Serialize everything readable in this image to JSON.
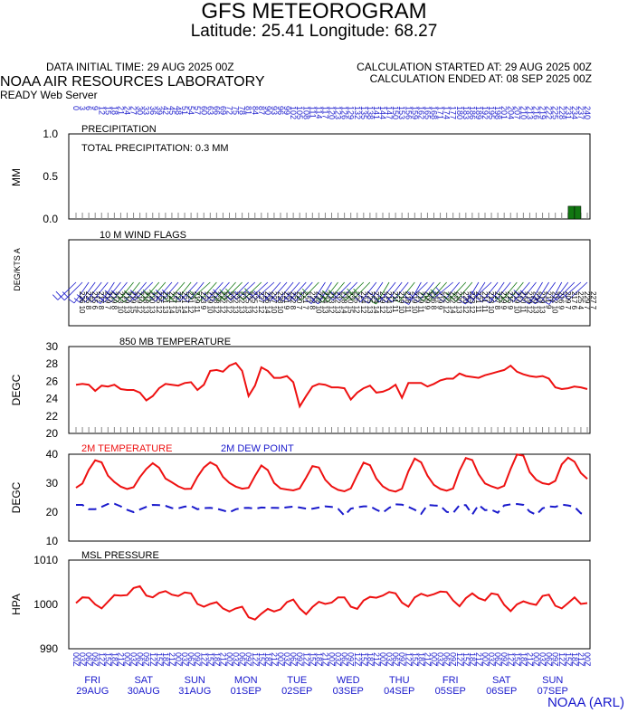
{
  "header": {
    "title": "GFS METEOROGRAM",
    "subtitle": "Latitude: 25.41 Longitude:  68.27",
    "init_time": "DATA INITIAL TIME: 29 AUG 2025 00Z",
    "calc_started": "CALCULATION STARTED AT: 29 AUG 2025 00Z",
    "calc_ended": "CALCULATION ENDED AT: 08 SEP 2025 00Z",
    "org": "NOAA AIR RESOURCES LABORATORY",
    "server": "READY Web Server"
  },
  "footer": {
    "credit": "NOAA (ARL)"
  },
  "colors": {
    "red": "#ee1111",
    "blue": "#1a1acc",
    "green": "#117711",
    "black": "#000000"
  },
  "chart_data": [
    {
      "type": "bar",
      "title": "PRECIPITATION",
      "annotation": "TOTAL PRECIPITATION:   0.3 MM",
      "ylabel": "MM",
      "ylim": [
        0,
        1
      ],
      "yticks": [
        "0.0",
        "0.5",
        "1.0"
      ],
      "x_hours": [
        0,
        3,
        6,
        9,
        12,
        15,
        18,
        21,
        24,
        27,
        30,
        33,
        36,
        39,
        42,
        45,
        48,
        51,
        54,
        57,
        60,
        63,
        66,
        69,
        72,
        75,
        78,
        81,
        84,
        87,
        90,
        93,
        96,
        99,
        102,
        105,
        108,
        111,
        114,
        117,
        120,
        123,
        126,
        129,
        132,
        135,
        138,
        141,
        144,
        147,
        150,
        153,
        156,
        159,
        162,
        165,
        168,
        171,
        174,
        177,
        180,
        183,
        186,
        189,
        192,
        195,
        198,
        201,
        204,
        207,
        210,
        213,
        216,
        219,
        222,
        225,
        228,
        231,
        234,
        237,
        240
      ],
      "values": [
        0,
        0,
        0,
        0,
        0,
        0,
        0,
        0,
        0,
        0,
        0,
        0,
        0,
        0,
        0,
        0,
        0,
        0,
        0,
        0,
        0,
        0,
        0,
        0,
        0,
        0,
        0,
        0,
        0,
        0,
        0,
        0,
        0,
        0,
        0,
        0,
        0,
        0,
        0,
        0,
        0,
        0,
        0,
        0,
        0,
        0,
        0,
        0,
        0,
        0,
        0,
        0,
        0,
        0,
        0,
        0,
        0,
        0,
        0,
        0,
        0,
        0,
        0,
        0,
        0,
        0,
        0,
        0,
        0,
        0,
        0,
        0,
        0,
        0,
        0,
        0,
        0,
        0,
        0.15,
        0.15,
        0
      ]
    },
    {
      "type": "line",
      "title": "10 M  WIND FLAGS",
      "ylabel": "DEG/KTS  A",
      "wind_dir_deg": [
        226,
        225,
        215,
        217,
        219,
        219,
        213,
        219,
        219,
        219,
        218,
        220,
        225,
        221,
        221,
        221,
        221,
        221,
        219,
        223,
        219,
        228,
        222,
        222,
        222,
        222,
        225,
        225,
        227,
        226,
        227,
        228,
        221,
        222,
        220,
        221,
        222,
        222,
        224,
        213,
        212,
        218,
        220,
        225,
        224,
        225,
        224,
        219,
        214,
        211,
        219,
        218,
        219,
        219,
        209,
        226,
        219,
        222,
        222,
        230,
        220,
        223,
        221,
        211,
        213,
        227,
        219,
        215,
        219,
        220,
        219,
        220,
        219,
        211,
        212,
        216,
        209,
        217,
        225,
        229,
        227
      ],
      "wind_kts": [
        10,
        8,
        6,
        8,
        7,
        8,
        10,
        13,
        15,
        12,
        13,
        13,
        12,
        13,
        14,
        15,
        14,
        12,
        11,
        9,
        10,
        12,
        12,
        12,
        13,
        13,
        13,
        12,
        12,
        14,
        10,
        10,
        9,
        8,
        7,
        7,
        8,
        10,
        13,
        12,
        13,
        14,
        15,
        12,
        12,
        13,
        14,
        12,
        13,
        11,
        10,
        11,
        10,
        11,
        9,
        8,
        9,
        12,
        14,
        13,
        12,
        12,
        11,
        11,
        10,
        8,
        9,
        9,
        10,
        11,
        12,
        13,
        13,
        9,
        10,
        9,
        7,
        6,
        4,
        7,
        7
      ]
    },
    {
      "type": "line",
      "title": "850 MB  TEMPERATURE",
      "ylabel": "DEGC",
      "ylim": [
        20,
        30
      ],
      "yticks": [
        "20",
        "22",
        "24",
        "26",
        "28",
        "30"
      ],
      "series": [
        {
          "values": [
            25.6,
            25.7,
            25.6,
            24.9,
            25.5,
            25.4,
            25.6,
            25.1,
            25.0,
            25.0,
            24.7,
            23.8,
            24.3,
            25.2,
            25.7,
            25.6,
            25.5,
            25.8,
            25.9,
            25.0,
            25.6,
            27.2,
            27.3,
            27.1,
            27.8,
            28.1,
            27.2,
            24.3,
            25.5,
            27.6,
            27.2,
            26.4,
            26.4,
            26.6,
            25.9,
            23.1,
            24.3,
            25.4,
            25.7,
            25.6,
            25.3,
            25.3,
            25.2,
            23.9,
            24.7,
            25.2,
            25.5,
            24.7,
            24.8,
            25.1,
            25.6,
            24.1,
            25.8,
            25.8,
            25.8,
            25.4,
            25.7,
            26.1,
            26.3,
            26.3,
            26.9,
            26.6,
            26.5,
            26.4,
            26.7,
            26.9,
            27.1,
            27.3,
            27.8,
            27.1,
            26.8,
            26.6,
            26.5,
            26.6,
            26.3,
            25.3,
            25.1,
            25.2,
            25.4,
            25.3,
            25.1
          ]
        }
      ]
    },
    {
      "type": "line",
      "legend": [
        "2M TEMPERATURE",
        "2M  DEW POINT"
      ],
      "ylabel": "DEGC",
      "ylim": [
        10,
        40
      ],
      "yticks": [
        "10",
        "20",
        "30",
        "40"
      ],
      "series": [
        {
          "name": "2M TEMPERATURE",
          "values": [
            28.4,
            29.9,
            34.6,
            37.9,
            37.2,
            32.6,
            30.4,
            28.8,
            28.0,
            28.6,
            32.1,
            34.9,
            36.9,
            35.3,
            31.6,
            30.3,
            28.9,
            28.0,
            28.1,
            32.2,
            35.4,
            37.2,
            36.0,
            32.2,
            30.1,
            28.8,
            28.1,
            28.4,
            32.5,
            36.1,
            34.5,
            30.1,
            28.2,
            27.8,
            27.5,
            28.2,
            31.9,
            35.9,
            35.4,
            31.2,
            28.9,
            27.7,
            27.2,
            28.2,
            32.8,
            37.1,
            36.2,
            31.6,
            28.9,
            27.6,
            27.1,
            28.1,
            34.1,
            38.5,
            37.2,
            32.6,
            29.4,
            28.0,
            27.4,
            28.2,
            34.3,
            38.7,
            38.0,
            33.1,
            29.9,
            28.9,
            28.2,
            29.1,
            34.9,
            39.9,
            39.5,
            33.8,
            31.2,
            30.0,
            29.6,
            30.8,
            36.5,
            38.8,
            37.4,
            33.5,
            31.5
          ]
        },
        {
          "name": "2M  DEW POINT",
          "values": [
            22.5,
            22.5,
            21.0,
            21.0,
            21.8,
            22.8,
            22.9,
            22.0,
            20.8,
            20.0,
            20.9,
            21.8,
            22.5,
            22.4,
            22.2,
            21.4,
            21.3,
            21.9,
            22.1,
            21.0,
            21.4,
            21.5,
            21.2,
            20.6,
            19.9,
            21.0,
            21.4,
            21.5,
            21.2,
            21.6,
            21.5,
            21.5,
            21.4,
            21.7,
            21.9,
            21.6,
            21.2,
            21.2,
            21.6,
            22.0,
            21.8,
            21.2,
            18.8,
            21.2,
            21.7,
            22.0,
            22.0,
            20.8,
            19.8,
            21.5,
            22.7,
            22.6,
            21.8,
            20.8,
            19.4,
            22.5,
            22.3,
            22.2,
            20.1,
            19.7,
            22.4,
            22.4,
            19.2,
            22.5,
            20.7,
            20.8,
            19.8,
            22.3,
            22.7,
            22.8,
            22.5,
            20.2,
            19.1,
            21.3,
            22.0,
            21.8,
            22.6,
            22.3,
            21.8,
            19.6,
            19.3
          ]
        }
      ]
    },
    {
      "type": "line",
      "title": "MSL PRESSURE",
      "ylabel": "HPA",
      "ylim": [
        990,
        1010
      ],
      "yticks": [
        "990",
        "1000",
        "1010"
      ],
      "series": [
        {
          "values": [
            1000.3,
            1001.6,
            1001.5,
            1000.0,
            999.1,
            1000.6,
            1002.1,
            1002.0,
            1002.1,
            1003.7,
            1004.1,
            1002.0,
            1001.6,
            1002.6,
            1003.0,
            1002.2,
            1001.9,
            1002.7,
            1002.5,
            1000.1,
            999.5,
            1000.1,
            1000.5,
            999.1,
            998.4,
            999.1,
            999.5,
            997.1,
            996.6,
            997.9,
            999.0,
            998.4,
            998.9,
            1000.5,
            1001.1,
            999.1,
            997.8,
            999.4,
            1000.6,
            1000.1,
            1000.4,
            1001.6,
            1001.6,
            999.5,
            999.0,
            1000.9,
            1001.7,
            1001.5,
            1002.0,
            1002.8,
            1002.5,
            1000.4,
            999.5,
            1001.6,
            1002.4,
            1001.9,
            1002.3,
            1002.9,
            1002.8,
            1000.9,
            999.6,
            1001.4,
            1002.5,
            1001.4,
            1000.9,
            1002.5,
            1002.2,
            999.9,
            998.5,
            1000.0,
            1000.7,
            1000.2,
            999.9,
            1001.9,
            1002.2,
            999.7,
            999.1,
            1000.3,
            1001.6,
            1000.1,
            1000.3
          ]
        }
      ]
    }
  ],
  "time_axis": {
    "hour_labels": [
      "0",
      "3",
      "6",
      "9",
      "12",
      "15",
      "18",
      "21",
      "24",
      "27",
      "30",
      "33",
      "36",
      "39",
      "42",
      "45",
      "48",
      "51",
      "54",
      "57",
      "60",
      "63",
      "66",
      "69",
      "72",
      "75",
      "78",
      "81",
      "84",
      "87",
      "90",
      "93",
      "96",
      "99",
      "102",
      "105",
      "108",
      "111",
      "114",
      "117",
      "120",
      "123",
      "126",
      "129",
      "132",
      "135",
      "138",
      "141",
      "144",
      "147",
      "150",
      "153",
      "156",
      "159",
      "162",
      "165",
      "168",
      "171",
      "174",
      "177",
      "180",
      "183",
      "186",
      "189",
      "192",
      "195",
      "198",
      "201",
      "204",
      "207",
      "210",
      "213",
      "216",
      "219",
      "222",
      "225",
      "228",
      "231",
      "234",
      "237",
      "240"
    ],
    "utc_labels": [
      "00Z",
      "03Z",
      "06Z",
      "09Z",
      "12Z",
      "15Z",
      "18Z",
      "21Z",
      "00Z",
      "03Z",
      "06Z",
      "09Z",
      "12Z",
      "15Z",
      "18Z",
      "21Z",
      "00Z",
      "03Z",
      "06Z",
      "09Z",
      "12Z",
      "15Z",
      "18Z",
      "21Z",
      "00Z",
      "03Z",
      "06Z",
      "09Z",
      "12Z",
      "15Z",
      "18Z",
      "21Z",
      "00Z",
      "03Z",
      "06Z",
      "09Z",
      "12Z",
      "15Z",
      "18Z",
      "21Z",
      "00Z",
      "03Z",
      "06Z",
      "09Z",
      "12Z",
      "15Z",
      "18Z",
      "21Z",
      "00Z",
      "03Z",
      "06Z",
      "09Z",
      "12Z",
      "15Z",
      "18Z",
      "21Z",
      "00Z",
      "03Z",
      "06Z",
      "09Z",
      "12Z",
      "15Z",
      "18Z",
      "21Z",
      "00Z",
      "03Z",
      "06Z",
      "09Z",
      "12Z",
      "15Z",
      "18Z",
      "21Z",
      "00Z",
      "03Z",
      "06Z",
      "09Z",
      "12Z",
      "15Z",
      "18Z",
      "21Z",
      "00Z"
    ],
    "days": [
      {
        "day": "FRI",
        "date": "29AUG"
      },
      {
        "day": "SAT",
        "date": "30AUG"
      },
      {
        "day": "SUN",
        "date": "31AUG"
      },
      {
        "day": "MON",
        "date": "01SEP"
      },
      {
        "day": "TUE",
        "date": "02SEP"
      },
      {
        "day": "WED",
        "date": "03SEP"
      },
      {
        "day": "THU",
        "date": "04SEP"
      },
      {
        "day": "FRI",
        "date": "05SEP"
      },
      {
        "day": "SAT",
        "date": "06SEP"
      },
      {
        "day": "SUN",
        "date": "07SEP"
      }
    ]
  }
}
